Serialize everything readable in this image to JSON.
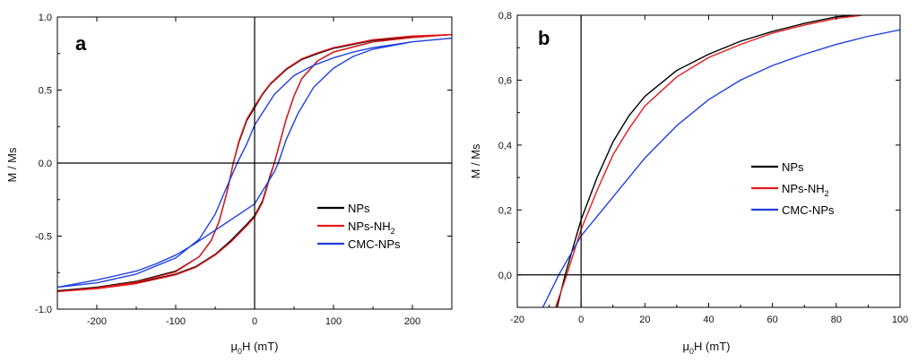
{
  "chart_data": [
    {
      "panel": "a",
      "type": "line",
      "xlabel": "μ0H (mT)",
      "xlabel_main": "μ",
      "xlabel_sub": "0",
      "xlabel_rest": "H (mT)",
      "ylabel": "M / Ms",
      "xlim": [
        -250,
        250
      ],
      "ylim": [
        -1.0,
        1.0
      ],
      "x_ticks": [
        -200,
        -100,
        0,
        100,
        200
      ],
      "x_tick_labels": [
        "-200",
        "-100",
        "0",
        "100",
        "200"
      ],
      "y_ticks": [
        -1.0,
        -0.5,
        0.0,
        0.5,
        1.0
      ],
      "y_tick_labels": [
        "-1.0",
        "-0.5",
        "0.0",
        "0.5",
        "1.0"
      ],
      "reference_lines": {
        "x": 0,
        "y": 0
      },
      "legend_position": "lower-right",
      "series": [
        {
          "name": "NPs",
          "label_main": "NPs",
          "label_sub": "",
          "color": "#000000",
          "points": [
            [
              -250,
              -0.875
            ],
            [
              -200,
              -0.855
            ],
            [
              -150,
              -0.82
            ],
            [
              -100,
              -0.76
            ],
            [
              -75,
              -0.71
            ],
            [
              -50,
              -0.625
            ],
            [
              -30,
              -0.53
            ],
            [
              -10,
              -0.42
            ],
            [
              0,
              -0.36
            ],
            [
              10,
              -0.26
            ],
            [
              20,
              -0.08
            ],
            [
              25,
              0.0
            ],
            [
              30,
              0.1
            ],
            [
              40,
              0.3
            ],
            [
              50,
              0.46
            ],
            [
              60,
              0.58
            ],
            [
              80,
              0.7
            ],
            [
              100,
              0.76
            ],
            [
              150,
              0.83
            ],
            [
              200,
              0.86
            ],
            [
              250,
              0.88
            ],
            [
              200,
              0.865
            ],
            [
              150,
              0.84
            ],
            [
              100,
              0.785
            ],
            [
              80,
              0.75
            ],
            [
              60,
              0.71
            ],
            [
              40,
              0.64
            ],
            [
              20,
              0.54
            ],
            [
              10,
              0.47
            ],
            [
              0,
              0.38
            ],
            [
              -10,
              0.29
            ],
            [
              -20,
              0.14
            ],
            [
              -27,
              0.0
            ],
            [
              -35,
              -0.2
            ],
            [
              -45,
              -0.4
            ],
            [
              -55,
              -0.53
            ],
            [
              -70,
              -0.64
            ],
            [
              -100,
              -0.74
            ],
            [
              -150,
              -0.81
            ],
            [
              -200,
              -0.85
            ],
            [
              -250,
              -0.875
            ]
          ]
        },
        {
          "name": "NPs-NH2",
          "label_main": "NPs-NH",
          "label_sub": "2",
          "color": "#e31a1c",
          "points": [
            [
              -250,
              -0.88
            ],
            [
              -200,
              -0.86
            ],
            [
              -150,
              -0.825
            ],
            [
              -100,
              -0.765
            ],
            [
              -75,
              -0.715
            ],
            [
              -50,
              -0.63
            ],
            [
              -30,
              -0.54
            ],
            [
              -10,
              -0.43
            ],
            [
              0,
              -0.37
            ],
            [
              10,
              -0.27
            ],
            [
              20,
              -0.09
            ],
            [
              25,
              0.0
            ],
            [
              30,
              0.1
            ],
            [
              40,
              0.3
            ],
            [
              50,
              0.46
            ],
            [
              60,
              0.58
            ],
            [
              80,
              0.7
            ],
            [
              100,
              0.76
            ],
            [
              150,
              0.83
            ],
            [
              200,
              0.86
            ],
            [
              250,
              0.88
            ],
            [
              200,
              0.87
            ],
            [
              150,
              0.845
            ],
            [
              100,
              0.79
            ],
            [
              80,
              0.755
            ],
            [
              60,
              0.715
            ],
            [
              40,
              0.645
            ],
            [
              20,
              0.545
            ],
            [
              10,
              0.475
            ],
            [
              0,
              0.39
            ],
            [
              -10,
              0.3
            ],
            [
              -20,
              0.15
            ],
            [
              -27,
              0.0
            ],
            [
              -35,
              -0.2
            ],
            [
              -45,
              -0.4
            ],
            [
              -55,
              -0.53
            ],
            [
              -70,
              -0.64
            ],
            [
              -100,
              -0.745
            ],
            [
              -150,
              -0.815
            ],
            [
              -200,
              -0.855
            ],
            [
              -250,
              -0.88
            ]
          ]
        },
        {
          "name": "CMC-NPs",
          "label_main": "CMC-NPs",
          "label_sub": "",
          "color": "#1f3fe0",
          "points": [
            [
              -250,
              -0.85
            ],
            [
              -200,
              -0.8
            ],
            [
              -150,
              -0.74
            ],
            [
              -125,
              -0.69
            ],
            [
              -100,
              -0.63
            ],
            [
              -75,
              -0.55
            ],
            [
              -50,
              -0.46
            ],
            [
              -25,
              -0.37
            ],
            [
              0,
              -0.28
            ],
            [
              25,
              -0.06
            ],
            [
              30,
              0.0
            ],
            [
              40,
              0.16
            ],
            [
              55,
              0.34
            ],
            [
              75,
              0.52
            ],
            [
              100,
              0.65
            ],
            [
              125,
              0.73
            ],
            [
              150,
              0.78
            ],
            [
              200,
              0.83
            ],
            [
              250,
              0.855
            ],
            [
              200,
              0.83
            ],
            [
              150,
              0.79
            ],
            [
              125,
              0.76
            ],
            [
              100,
              0.72
            ],
            [
              75,
              0.67
            ],
            [
              50,
              0.6
            ],
            [
              25,
              0.47
            ],
            [
              0,
              0.26
            ],
            [
              -10,
              0.13
            ],
            [
              -22,
              0.0
            ],
            [
              -35,
              -0.16
            ],
            [
              -50,
              -0.35
            ],
            [
              -70,
              -0.52
            ],
            [
              -100,
              -0.65
            ],
            [
              -150,
              -0.76
            ],
            [
              -200,
              -0.82
            ],
            [
              -250,
              -0.85
            ]
          ]
        }
      ]
    },
    {
      "panel": "b",
      "type": "line",
      "xlabel": "μ0H (mT)",
      "xlabel_main": "μ",
      "xlabel_sub": "0",
      "xlabel_rest": "H (mT)",
      "ylabel": "M / Ms",
      "xlim": [
        -20,
        100
      ],
      "ylim": [
        -0.1,
        0.8
      ],
      "x_ticks": [
        -20,
        0,
        20,
        40,
        60,
        80,
        100
      ],
      "x_tick_labels": [
        "-20",
        "0",
        "20",
        "40",
        "60",
        "80",
        "100"
      ],
      "y_ticks": [
        0.0,
        0.2,
        0.4,
        0.6,
        0.8
      ],
      "y_tick_labels": [
        "0,0",
        "0,2",
        "0,4",
        "0,6",
        "0,8"
      ],
      "reference_lines": {
        "x": 0,
        "y": 0
      },
      "legend_position": "center-right",
      "series": [
        {
          "name": "NPs",
          "label_main": "NPs",
          "label_sub": "",
          "color": "#000000",
          "points": [
            [
              -7.5,
              -0.1
            ],
            [
              -5,
              0.0
            ],
            [
              0,
              0.17
            ],
            [
              5,
              0.3
            ],
            [
              10,
              0.41
            ],
            [
              15,
              0.49
            ],
            [
              20,
              0.55
            ],
            [
              30,
              0.63
            ],
            [
              40,
              0.68
            ],
            [
              50,
              0.72
            ],
            [
              60,
              0.75
            ],
            [
              70,
              0.775
            ],
            [
              80,
              0.795
            ],
            [
              86,
              0.8
            ]
          ]
        },
        {
          "name": "NPs-NH2",
          "label_main": "NPs-NH",
          "label_sub": "2",
          "color": "#e31a1c",
          "points": [
            [
              -8,
              -0.1
            ],
            [
              -4.5,
              0.0
            ],
            [
              0,
              0.14
            ],
            [
              5,
              0.26
            ],
            [
              10,
              0.37
            ],
            [
              15,
              0.45
            ],
            [
              20,
              0.52
            ],
            [
              30,
              0.61
            ],
            [
              40,
              0.67
            ],
            [
              50,
              0.71
            ],
            [
              60,
              0.745
            ],
            [
              70,
              0.77
            ],
            [
              80,
              0.79
            ],
            [
              88,
              0.8
            ]
          ]
        },
        {
          "name": "CMC-NPs",
          "label_main": "CMC-NPs",
          "label_sub": "",
          "color": "#1f3fe0",
          "points": [
            [
              -12,
              -0.1
            ],
            [
              -7,
              0.0
            ],
            [
              0,
              0.12
            ],
            [
              10,
              0.24
            ],
            [
              20,
              0.36
            ],
            [
              30,
              0.46
            ],
            [
              40,
              0.54
            ],
            [
              50,
              0.6
            ],
            [
              60,
              0.645
            ],
            [
              70,
              0.68
            ],
            [
              80,
              0.71
            ],
            [
              90,
              0.735
            ],
            [
              100,
              0.755
            ]
          ]
        }
      ]
    }
  ]
}
